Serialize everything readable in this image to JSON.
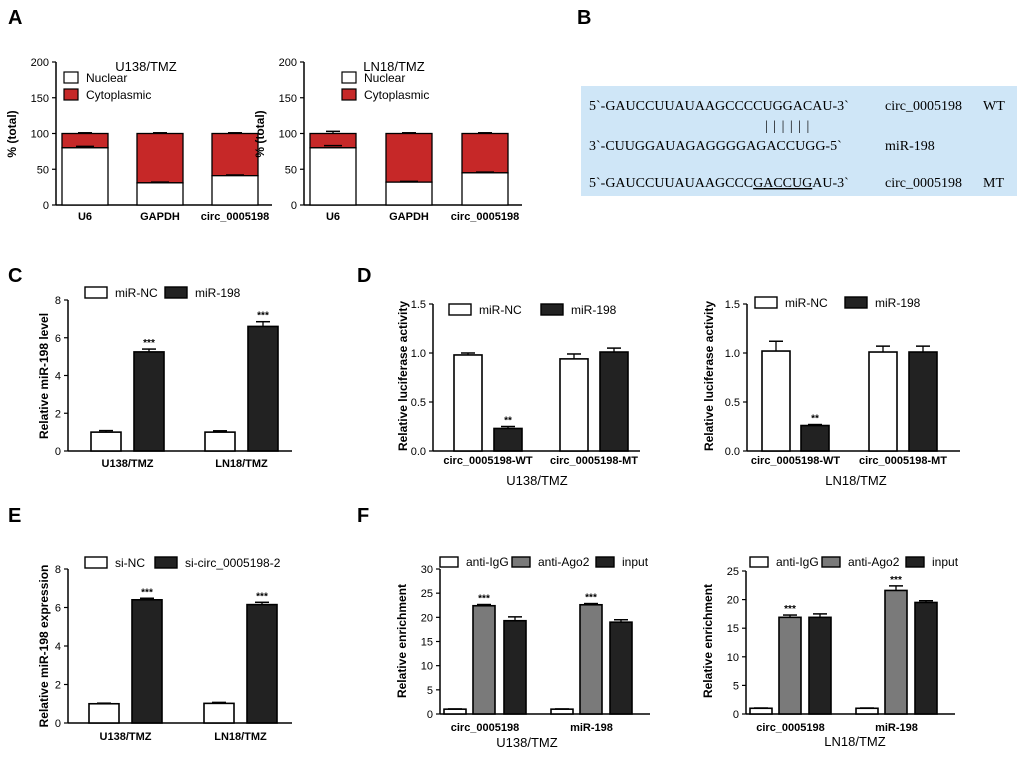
{
  "panel_labels": {
    "A": "A",
    "B": "B",
    "C": "C",
    "D": "D",
    "E": "E",
    "F": "F"
  },
  "colors": {
    "nuclear": "#ffffff",
    "cytoplasmic": "#c62828",
    "black": "#222222",
    "gray": "#7a7a7a",
    "seq_box": "#cfe6f7"
  },
  "sequence_panel": {
    "rows": [
      {
        "seq": "5`-GAUCCUUAUAAGCCCCUGGACAU-3`",
        "name": "circ_0005198",
        "tag": "WT"
      },
      {
        "seq": "3`-CUUGGAUAGAGGGGAGACCUGG-5`",
        "name": "miR-198",
        "tag": ""
      },
      {
        "seq_prefix": "5`-GAUCCUUAUAAGCCC",
        "seq_underlined": "GACCUG",
        "seq_suffix": "AU-3`",
        "name": "circ_0005198",
        "tag": "MT"
      }
    ],
    "pairing_bars": "| | | | | |"
  },
  "chart_data": [
    {
      "id": "A1",
      "type": "bar",
      "stacked": true,
      "title": "U138/TMZ",
      "ylabel": "% (total)",
      "categories": [
        "U6",
        "GAPDH",
        "circ_0005198"
      ],
      "series": [
        {
          "name": "Nuclear",
          "values": [
            80,
            31,
            41
          ],
          "err": [
            2,
            1,
            1
          ]
        },
        {
          "name": "Cytoplasmic",
          "values": [
            20,
            69,
            59
          ],
          "err": [
            1,
            1,
            1
          ]
        }
      ],
      "ylim": [
        0,
        200
      ],
      "yticks": [
        "0",
        "50",
        "100",
        "150",
        "200"
      ],
      "ytick_values": [
        0,
        50,
        100,
        150,
        200
      ]
    },
    {
      "id": "A2",
      "type": "bar",
      "stacked": true,
      "title": "LN18/TMZ",
      "ylabel": "% (total)",
      "categories": [
        "U6",
        "GAPDH",
        "circ_0005198"
      ],
      "series": [
        {
          "name": "Nuclear",
          "values": [
            80,
            32,
            45
          ],
          "err": [
            3,
            1,
            1
          ]
        },
        {
          "name": "Cytoplasmic",
          "values": [
            20,
            68,
            55
          ],
          "err": [
            3,
            1,
            1
          ]
        }
      ],
      "ylim": [
        0,
        200
      ],
      "yticks": [
        "0",
        "50",
        "100",
        "150",
        "200"
      ],
      "ytick_values": [
        0,
        50,
        100,
        150,
        200
      ]
    },
    {
      "id": "C",
      "type": "bar",
      "title": "",
      "ylabel": "Relative miR-198 level",
      "categories": [
        "U138/TMZ",
        "LN18/TMZ"
      ],
      "series": [
        {
          "name": "miR-NC",
          "values": [
            1.0,
            1.0
          ],
          "err": [
            0.08,
            0.07
          ]
        },
        {
          "name": "miR-198",
          "values": [
            5.25,
            6.6
          ],
          "err": [
            0.15,
            0.25
          ]
        }
      ],
      "significance": {
        "miR-198": [
          "***",
          "***"
        ]
      },
      "ylim": [
        0,
        8
      ],
      "yticks": [
        "0",
        "2",
        "4",
        "6",
        "8"
      ],
      "ytick_values": [
        0,
        2,
        4,
        6,
        8
      ]
    },
    {
      "id": "D1",
      "type": "bar",
      "title": "",
      "ylabel": "Relative luciferase activity",
      "xlabel": "U138/TMZ",
      "categories": [
        "circ_0005198-WT",
        "circ_0005198-MT"
      ],
      "series": [
        {
          "name": "miR-NC",
          "values": [
            0.98,
            0.94
          ],
          "err": [
            0.02,
            0.05
          ]
        },
        {
          "name": "miR-198",
          "values": [
            0.23,
            1.01
          ],
          "err": [
            0.02,
            0.04
          ]
        }
      ],
      "significance": {
        "miR-198": [
          "**",
          ""
        ]
      },
      "ylim": [
        0,
        1.5
      ],
      "yticks": [
        "0.0",
        "0.5",
        "1.0",
        "1.5"
      ],
      "ytick_values": [
        0,
        0.5,
        1.0,
        1.5
      ]
    },
    {
      "id": "D2",
      "type": "bar",
      "title": "",
      "ylabel": "Relative luciferase activity",
      "xlabel": "LN18/TMZ",
      "categories": [
        "circ_0005198-WT",
        "circ_0005198-MT"
      ],
      "series": [
        {
          "name": "miR-NC",
          "values": [
            1.02,
            1.01
          ],
          "err": [
            0.1,
            0.06
          ]
        },
        {
          "name": "miR-198",
          "values": [
            0.26,
            1.01
          ],
          "err": [
            0.01,
            0.06
          ]
        }
      ],
      "significance": {
        "miR-198": [
          "**",
          ""
        ]
      },
      "ylim": [
        0,
        1.5
      ],
      "yticks": [
        "0.0",
        "0.5",
        "1.0",
        "1.5"
      ],
      "ytick_values": [
        0,
        0.5,
        1.0,
        1.5
      ]
    },
    {
      "id": "E",
      "type": "bar",
      "title": "",
      "ylabel": "Relative miR-198 expression",
      "categories": [
        "U138/TMZ",
        "LN18/TMZ"
      ],
      "series": [
        {
          "name": "si-NC",
          "values": [
            1.0,
            1.02
          ],
          "err": [
            0.03,
            0.05
          ]
        },
        {
          "name": "si-circ_0005198-2",
          "values": [
            6.4,
            6.15
          ],
          "err": [
            0.08,
            0.12
          ]
        }
      ],
      "significance": {
        "si-circ_0005198-2": [
          "***",
          "***"
        ]
      },
      "ylim": [
        0,
        8
      ],
      "yticks": [
        "0",
        "2",
        "4",
        "6",
        "8"
      ],
      "ytick_values": [
        0,
        2,
        4,
        6,
        8
      ]
    },
    {
      "id": "F1",
      "type": "bar",
      "title": "",
      "ylabel": "Relative enrichment",
      "xlabel": "U138/TMZ",
      "categories": [
        "circ_0005198",
        "miR-198"
      ],
      "series": [
        {
          "name": "anti-IgG",
          "values": [
            1.0,
            1.0
          ],
          "err": [
            0.05,
            0.05
          ]
        },
        {
          "name": "anti-Ago2",
          "values": [
            22.4,
            22.6
          ],
          "err": [
            0.25,
            0.25
          ]
        },
        {
          "name": "input",
          "values": [
            19.3,
            19.0
          ],
          "err": [
            0.8,
            0.5
          ]
        }
      ],
      "significance": {
        "anti-Ago2": [
          "***",
          "***"
        ]
      },
      "ylim": [
        0,
        30
      ],
      "yticks": [
        "0",
        "5",
        "10",
        "15",
        "20",
        "25",
        "30"
      ],
      "ytick_values": [
        0,
        5,
        10,
        15,
        20,
        25,
        30
      ]
    },
    {
      "id": "F2",
      "type": "bar",
      "title": "",
      "ylabel": "Relative enrichment",
      "xlabel": "LN18/TMZ",
      "categories": [
        "circ_0005198",
        "miR-198"
      ],
      "series": [
        {
          "name": "anti-IgG",
          "values": [
            1.0,
            1.0
          ],
          "err": [
            0.05,
            0.05
          ]
        },
        {
          "name": "anti-Ago2",
          "values": [
            16.9,
            21.6
          ],
          "err": [
            0.4,
            0.8
          ]
        },
        {
          "name": "input",
          "values": [
            16.9,
            19.5
          ],
          "err": [
            0.6,
            0.3
          ]
        }
      ],
      "significance": {
        "anti-Ago2": [
          "***",
          "***"
        ]
      },
      "ylim": [
        0,
        25
      ],
      "yticks": [
        "0",
        "5",
        "10",
        "15",
        "20",
        "25"
      ],
      "ytick_values": [
        0,
        5,
        10,
        15,
        20,
        25
      ]
    }
  ]
}
